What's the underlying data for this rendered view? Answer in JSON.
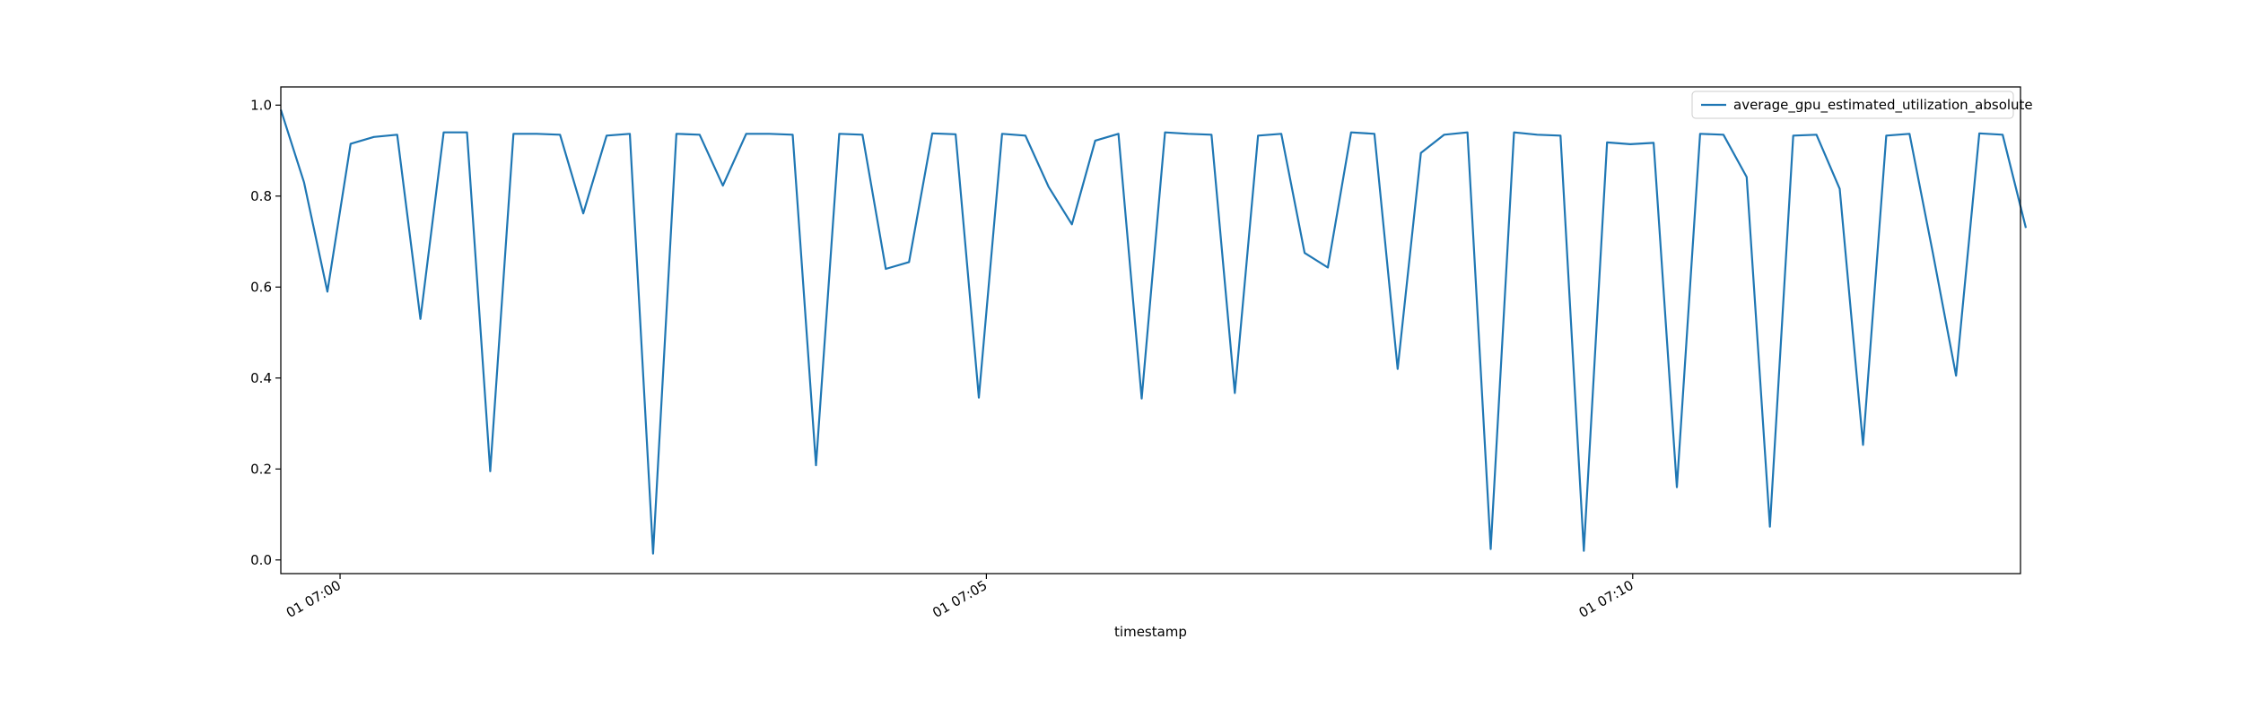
{
  "chart_data": {
    "type": "line",
    "title": "",
    "xlabel": "timestamp",
    "ylabel": "",
    "x_unit": "seconds after 07:00",
    "xlim": [
      -27.5,
      780
    ],
    "ylim": [
      -0.03,
      1.04
    ],
    "yticks": [
      0.0,
      0.2,
      0.4,
      0.6,
      0.8,
      1.0
    ],
    "ytick_labels": [
      "0.0",
      "0.2",
      "0.4",
      "0.6",
      "0.8",
      "1.0"
    ],
    "xticks": [
      {
        "value": 0,
        "label": "01 07:00"
      },
      {
        "value": 300,
        "label": "01 07:05"
      },
      {
        "value": 600,
        "label": "01 07:10"
      }
    ],
    "grid": false,
    "legend_position": "top-right",
    "color": "#1f77b4",
    "series": [
      {
        "name": "average_gpu_estimated_utilization_absolute",
        "start": -27.5,
        "step": 10.8,
        "values": [
          0.99,
          0.83,
          0.59,
          0.915,
          0.93,
          0.935,
          0.53,
          0.94,
          0.94,
          0.195,
          0.937,
          0.937,
          0.935,
          0.762,
          0.933,
          0.937,
          0.014,
          0.937,
          0.935,
          0.823,
          0.937,
          0.937,
          0.935,
          0.208,
          0.937,
          0.935,
          0.64,
          0.655,
          0.938,
          0.936,
          0.357,
          0.937,
          0.933,
          0.82,
          0.738,
          0.922,
          0.937,
          0.355,
          0.94,
          0.937,
          0.935,
          0.367,
          0.933,
          0.937,
          0.675,
          0.643,
          0.94,
          0.937,
          0.42,
          0.895,
          0.935,
          0.94,
          0.024,
          0.94,
          0.935,
          0.933,
          0.02,
          0.918,
          0.914,
          0.917,
          0.16,
          0.937,
          0.935,
          0.842,
          0.073,
          0.933,
          0.935,
          0.816,
          0.253,
          0.933,
          0.937,
          0.675,
          0.405,
          0.938,
          0.935,
          0.73
        ]
      }
    ]
  }
}
